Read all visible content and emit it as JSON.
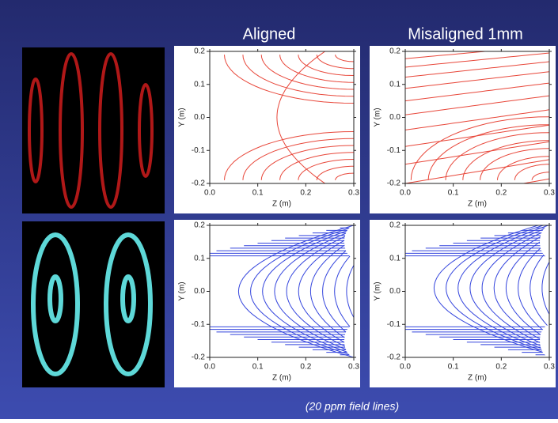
{
  "columns": [
    "Aligned",
    "Misaligned 1mm"
  ],
  "note": "(20 ppm field lines)",
  "plots": [
    {
      "type": "contour",
      "color": "#e8473a",
      "xlabel": "Z (m)",
      "ylabel": "Y (m)",
      "xlim": [
        0,
        0.3
      ],
      "ylim": [
        -0.2,
        0.2
      ],
      "xticks": [
        {
          "value": 0,
          "label": "0.0"
        },
        0.1,
        0.2,
        0.3
      ],
      "yticks": [
        -0.2,
        -0.1,
        {
          "value": 0,
          "label": "0.0"
        },
        0.1,
        0.2
      ]
    },
    {
      "type": "contour",
      "color": "#e8473a",
      "xlabel": "Z (m)",
      "ylabel": "Y (m)",
      "xlim": [
        0,
        0.3
      ],
      "ylim": [
        -0.2,
        0.2
      ],
      "xticks": [
        {
          "value": 0,
          "label": "0.0"
        },
        0.1,
        0.2,
        0.3
      ],
      "yticks": [
        -0.2,
        -0.1,
        {
          "value": 0,
          "label": "0.0"
        },
        0.1,
        0.2
      ]
    },
    {
      "type": "contour",
      "color": "#3344dd",
      "xlabel": "Z (m)",
      "ylabel": "Y (m)",
      "xlim": [
        0,
        0.3
      ],
      "ylim": [
        -0.2,
        0.2
      ],
      "xticks": [
        {
          "value": 0,
          "label": "0.0"
        },
        0.1,
        0.2,
        0.3
      ],
      "yticks": [
        -0.2,
        -0.1,
        {
          "value": 0,
          "label": "0.0"
        },
        0.1,
        0.2
      ]
    },
    {
      "type": "contour",
      "color": "#3344dd",
      "xlabel": "Z (m)",
      "ylabel": "Y (m)",
      "xlim": [
        0,
        0.3
      ],
      "ylim": [
        -0.2,
        0.2
      ],
      "xticks": [
        {
          "value": 0,
          "label": "0.0"
        },
        0.1,
        0.2,
        0.3
      ],
      "yticks": [
        -0.2,
        -0.1,
        {
          "value": 0,
          "label": "0.0"
        },
        0.1,
        0.2
      ]
    }
  ]
}
